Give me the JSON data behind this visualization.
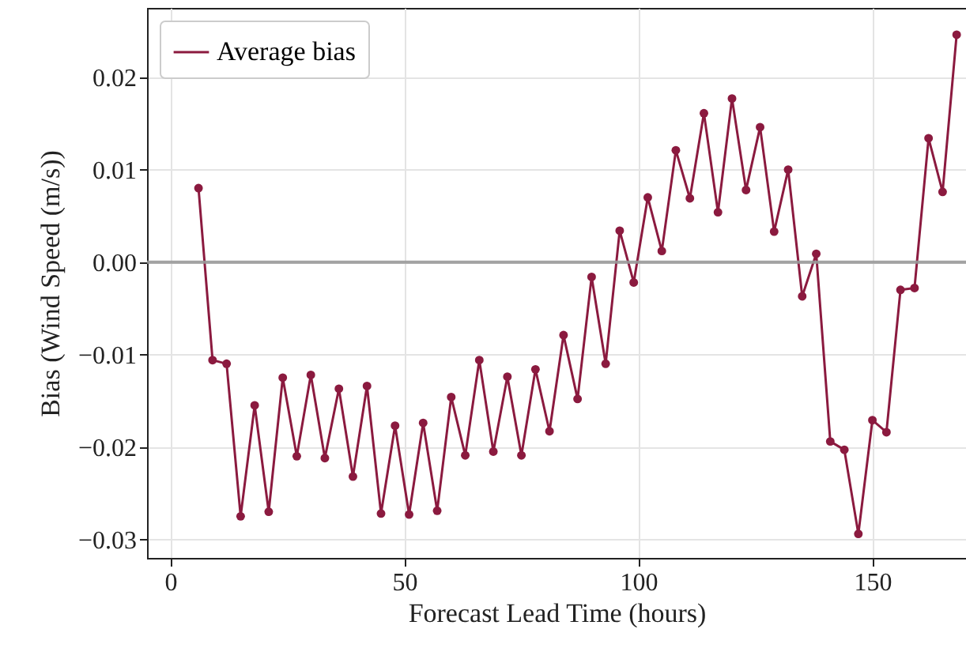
{
  "chart_data": {
    "type": "line",
    "xlabel": "Forecast Lead Time (hours)",
    "ylabel": "Bias (Wind Speed (m/s))",
    "x": [
      6,
      9,
      12,
      15,
      18,
      21,
      24,
      27,
      30,
      33,
      36,
      39,
      42,
      45,
      48,
      51,
      54,
      57,
      60,
      63,
      66,
      69,
      72,
      75,
      78,
      81,
      84,
      87,
      90,
      93,
      96,
      99,
      102,
      105,
      108,
      111,
      114,
      117,
      120,
      123,
      126,
      129,
      132,
      135,
      138,
      141,
      144,
      147,
      150,
      153,
      156,
      159,
      162,
      165,
      168
    ],
    "series": [
      {
        "name": "Average bias",
        "color": "#8b1a3f",
        "values": [
          0.008,
          -0.0106,
          -0.011,
          -0.0275,
          -0.0155,
          -0.027,
          -0.0125,
          -0.021,
          -0.0122,
          -0.0212,
          -0.0137,
          -0.0232,
          -0.0134,
          -0.0272,
          -0.0177,
          -0.0273,
          -0.0174,
          -0.0269,
          -0.0146,
          -0.0209,
          -0.0106,
          -0.0205,
          -0.0124,
          -0.0209,
          -0.0116,
          -0.0183,
          -0.0079,
          -0.0148,
          -0.0016,
          -0.011,
          0.0034,
          -0.0022,
          0.007,
          0.0012,
          0.0121,
          0.0069,
          0.0161,
          0.0054,
          0.0177,
          0.0078,
          0.0146,
          0.0033,
          0.01,
          -0.0037,
          0.0009,
          -0.0194,
          -0.0203,
          -0.0294,
          -0.0171,
          -0.0184,
          -0.003,
          -0.0028,
          0.0134,
          0.0076,
          0.0246
        ]
      }
    ],
    "xlim": [
      -5,
      170
    ],
    "xticks": [
      0,
      50,
      100,
      150
    ],
    "ylim": [
      -0.032,
      0.0275
    ],
    "yticks": [
      {
        "value": -0.03,
        "label": "−0.03"
      },
      {
        "value": -0.02,
        "label": "−0.02"
      },
      {
        "value": -0.01,
        "label": "−0.01"
      },
      {
        "value": 0,
        "label": "0.00"
      },
      {
        "value": 0.01,
        "label": "0.01"
      },
      {
        "value": 0.02,
        "label": "0.02"
      }
    ],
    "ref_lines": [
      {
        "axis": "y",
        "value": 0,
        "color": "#999999"
      }
    ],
    "grid": true,
    "legend": "top left",
    "marker": "circle",
    "line_style": "solid"
  }
}
